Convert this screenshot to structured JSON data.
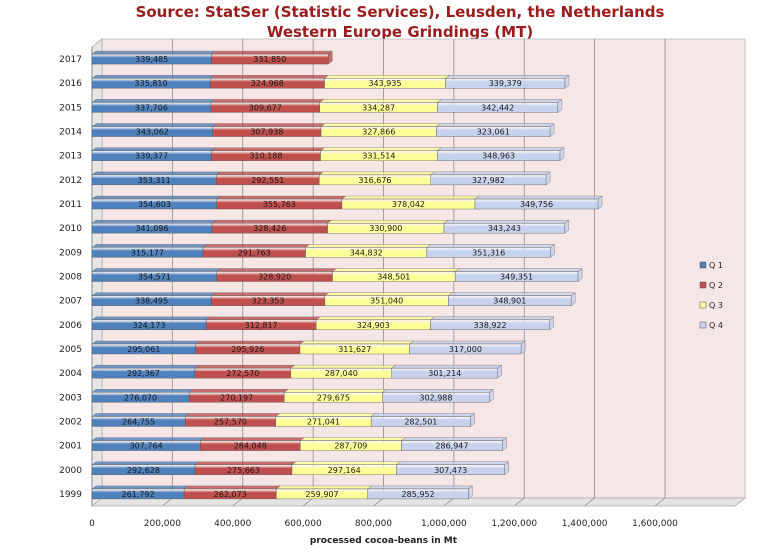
{
  "chart_data": {
    "type": "bar",
    "orientation": "horizontal",
    "stacked": true,
    "title_line1": "Source: StatSer (Statistic Services), Leusden, the Netherlands",
    "title_line2": "Western Europe Grindings (MT)",
    "xlabel": "processed cocoa-beans in Mt",
    "ylabel": "",
    "xlim": [
      0,
      1600000
    ],
    "xticks": [
      "0",
      "200,000",
      "400,000",
      "600,000",
      "800,000",
      "1,000,000",
      "1,200,000",
      "1,400,000",
      "1,600,000"
    ],
    "grid": true,
    "legend_position": "right",
    "colors": [
      "#4f81bd",
      "#c0504d",
      "#ffff99",
      "#c6d2ee"
    ],
    "categories": [
      "2017",
      "2016",
      "2015",
      "2014",
      "2013",
      "2012",
      "2011",
      "2010",
      "2009",
      "2008",
      "2007",
      "2006",
      "2005",
      "2004",
      "2003",
      "2002",
      "2001",
      "2000",
      "1999"
    ],
    "series": [
      {
        "name": "Q 1",
        "values": [
          339485,
          335810,
          337706,
          343062,
          339377,
          353311,
          354603,
          341096,
          315177,
          354571,
          338495,
          324173,
          295061,
          292367,
          276070,
          264755,
          307764,
          292628,
          261792
        ],
        "labels": [
          "339,485",
          "335,810",
          "337,706",
          "343,062",
          "339,377",
          "353,311",
          "354,603",
          "341,096",
          "315,177",
          "354,571",
          "338,495",
          "324,173",
          "295,061",
          "292,367",
          "276,070",
          "264,755",
          "307,764",
          "292,628",
          "261,792"
        ]
      },
      {
        "name": "Q 2",
        "values": [
          331850,
          324968,
          309677,
          307938,
          310188,
          292551,
          355763,
          328426,
          291763,
          328920,
          323353,
          312817,
          295926,
          272570,
          270197,
          257570,
          284048,
          275663,
          262073
        ],
        "labels": [
          "331,850",
          "324,968",
          "309,677",
          "307,938",
          "310,188",
          "292,551",
          "355,763",
          "328,426",
          "291,763",
          "328,920",
          "323,353",
          "312,817",
          "295,926",
          "272,570",
          "270,197",
          "257,570",
          "284,048",
          "275,663",
          "262,073"
        ]
      },
      {
        "name": "Q 3",
        "values": [
          null,
          343935,
          334287,
          327866,
          331514,
          316676,
          378042,
          330900,
          344832,
          348501,
          351040,
          324903,
          311627,
          287040,
          279675,
          271041,
          287709,
          297164,
          259907
        ],
        "labels": [
          "",
          "343,935",
          "334,287",
          "327,866",
          "331,514",
          "316,676",
          "378,042",
          "330,900",
          "344,832",
          "348,501",
          "351,040",
          "324,903",
          "311,627",
          "287,040",
          "279,675",
          "271,041",
          "287,709",
          "297,164",
          "259,907"
        ]
      },
      {
        "name": "Q 4",
        "values": [
          null,
          339379,
          342442,
          323061,
          348963,
          327982,
          349756,
          343243,
          351316,
          349351,
          348901,
          338922,
          317000,
          301214,
          302988,
          282501,
          286947,
          307473,
          285952
        ],
        "labels": [
          "",
          "339,379",
          "342,442",
          "323,061",
          "348,963",
          "327,982",
          "349,756",
          "343,243",
          "351,316",
          "349,351",
          "348,901",
          "338,922",
          "317,000",
          "301,214",
          "302,988",
          "282,501",
          "286,947",
          "307,473",
          "285,952"
        ]
      }
    ]
  }
}
